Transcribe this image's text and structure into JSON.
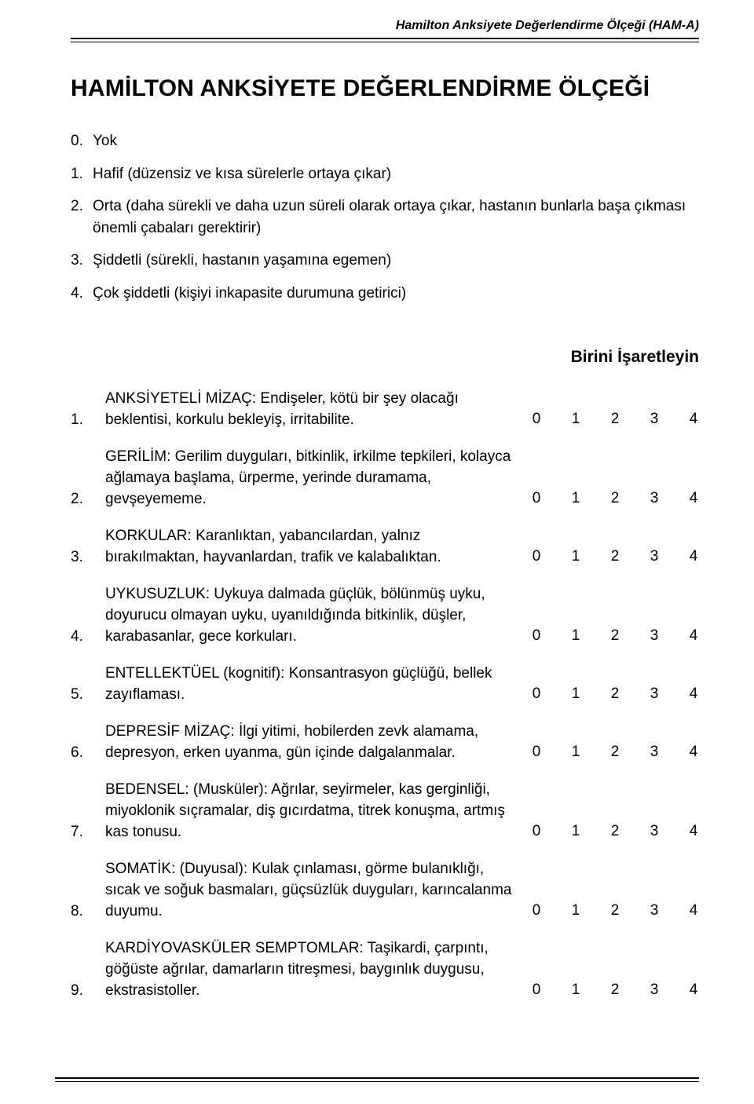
{
  "colors": {
    "background": "#ffffff",
    "text": "#000000",
    "rule": "#000000"
  },
  "typography": {
    "body_family": "Trebuchet MS, Lucida Sans, Arial, sans-serif",
    "title_size_pt": 22,
    "body_size_pt": 14,
    "header_size_pt": 12,
    "instruction_size_pt": 15
  },
  "header": {
    "running_title": "Hamilton Anksiyete Değerlendirme Ölçeği (HAM-A)"
  },
  "title": "HAMİLTON ANKSİYETE DEĞERLENDİRME ÖLÇEĞİ",
  "scale": [
    {
      "n": "0.",
      "label": "Yok"
    },
    {
      "n": "1.",
      "label": "Hafif (düzensiz ve kısa sürelerle ortaya çıkar)"
    },
    {
      "n": "2.",
      "label": "Orta (daha sürekli ve daha uzun süreli olarak ortaya çıkar, hastanın bunlarla başa çıkması önemli çabaları gerektirir)"
    },
    {
      "n": "3.",
      "label": "Şiddetli (sürekli, hastanın yaşamına egemen)"
    },
    {
      "n": "4.",
      "label": "Çok şiddetli (kişiyi inkapasite durumuna getirici)"
    }
  ],
  "instruction": "Birini İşaretleyin",
  "ratings": [
    "0",
    "1",
    "2",
    "3",
    "4"
  ],
  "items": [
    {
      "n": "1.",
      "text": "ANKSİYETELİ MİZAÇ: Endişeler, kötü bir şey olacağı beklentisi, korkulu bekleyiş, irritabilite."
    },
    {
      "n": "2.",
      "text": "GERİLİM: Gerilim duyguları, bitkinlik, irkilme tepkileri, kolayca ağlamaya başlama, ürperme, yerinde duramama, gevşeyememe."
    },
    {
      "n": "3.",
      "text": "KORKULAR: Karanlıktan, yabancılardan, yalnız bırakılmaktan, hayvanlardan, trafik ve kalabalıktan."
    },
    {
      "n": "4.",
      "text": "UYKUSUZLUK: Uykuya dalmada güçlük, bölünmüş uyku, doyurucu olmayan uyku, uyanıldığında bitkinlik, düşler, karabasanlar, gece korkuları."
    },
    {
      "n": "5.",
      "text": "ENTELLEKTÜEL (kognitif): Konsantrasyon güçlüğü, bellek zayıflaması."
    },
    {
      "n": "6.",
      "text": "DEPRESİF MİZAÇ: İlgi yitimi, hobilerden zevk alamama, depresyon, erken uyanma, gün içinde dalgalanmalar."
    },
    {
      "n": "7.",
      "text": "BEDENSEL: (Musküler): Ağrılar, seyirmeler, kas gerginliği, miyoklonik sıçramalar, diş gıcırdatma, titrek konuşma, artmış kas tonusu."
    },
    {
      "n": "8.",
      "text": "SOMATİK: (Duyusal): Kulak çınlaması, görme bulanıklığı, sıcak ve soğuk basmaları, güçsüzlük duyguları, karıncalanma duyumu."
    },
    {
      "n": "9.",
      "text": "KARDİYOVASKÜLER SEMPTOMLAR: Taşikardi, çarpıntı, göğüste ağrılar, damarların titreşmesi, baygınlık duygusu, ekstrasistoller."
    }
  ]
}
